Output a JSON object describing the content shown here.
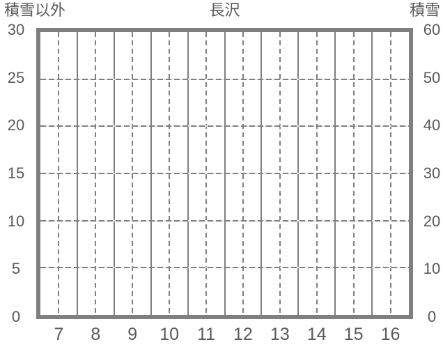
{
  "chart_data": {
    "type": "line",
    "title": "長沢",
    "left_axis": {
      "title": "積雪以外",
      "range": [
        0,
        30
      ],
      "ticks": [
        "30",
        "25",
        "20",
        "15",
        "10",
        "5",
        "0"
      ]
    },
    "right_axis": {
      "title": "積雪",
      "range": [
        0,
        60
      ],
      "ticks": [
        "60",
        "50",
        "40",
        "30",
        "20",
        "10",
        "0"
      ]
    },
    "x_axis": {
      "ticks": [
        "7",
        "8",
        "9",
        "10",
        "11",
        "12",
        "13",
        "14",
        "15",
        "16"
      ]
    },
    "series": [],
    "grid": {
      "columns": 10,
      "vertical_solid": "column-boundaries",
      "vertical_dashed": "column-centers",
      "horizontal_dashed_values": [
        25,
        20,
        15,
        10,
        5
      ]
    },
    "colors": {
      "frame": "#7f7f7f",
      "grid": "#7f7f7f",
      "grid_gap": "#e8e8e8",
      "text": "#595959",
      "background": "#ffffff"
    }
  }
}
